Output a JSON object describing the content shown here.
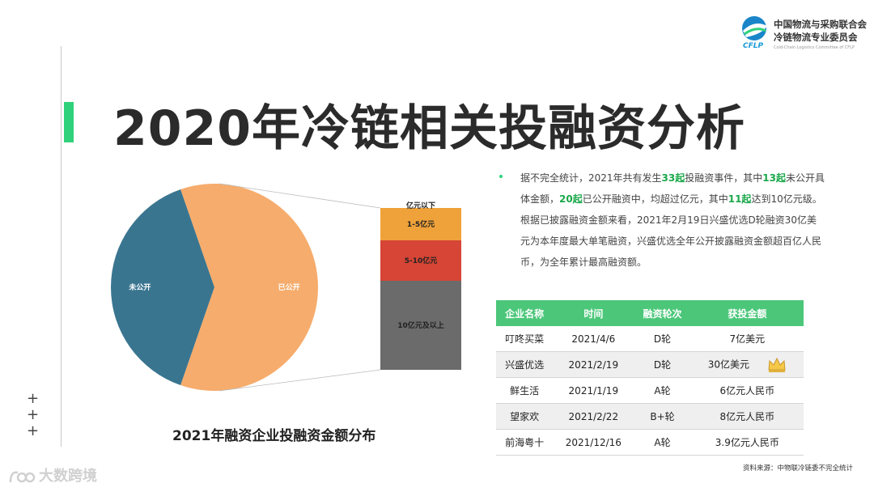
{
  "page": {
    "title": "2020年冷链相关投融资分析",
    "source": "资料来源：中物联冷链委不完全统计",
    "watermark": "大数跨境"
  },
  "logo": {
    "line1": "中国物流与采购联合会",
    "line2": "冷链物流专业委员会",
    "sub": "Cold-Chain Logistics Committee of CFLP",
    "abbr": "CFLP"
  },
  "summary": {
    "text": [
      "据不完全统计，2021年共有发生",
      "33起",
      "投融资事件，其中",
      "13起",
      "未公开具体金额，",
      "20起",
      "已公开融资中，均超过亿元，其中",
      "11起",
      "达到10亿元级。根据已披露融资金额来看，2021年2月19日兴盛优选D轮融资30亿美元为本年度最大单笔融资，兴盛优选全年公开披露融资金额超百亿人民币，为全年累计最高融资额。"
    ]
  },
  "chart_data": {
    "type": "pie",
    "title": "2021年融资企业投融资金额分布",
    "slices": [
      {
        "label": "未公开",
        "value": 13,
        "color": "#3a7590"
      },
      {
        "label": "已公开",
        "value": 20,
        "color": "#f6ac6c"
      }
    ],
    "breakdown": {
      "type": "stacked-bar",
      "of": "已公开",
      "segments": [
        {
          "label": "10亿元及以上",
          "value": 11,
          "color": "#6b6b6b"
        },
        {
          "label": "5-10亿元",
          "value": 5,
          "color": "#d64535"
        },
        {
          "label": "1-5亿元",
          "value": 4,
          "color": "#f0a23a"
        },
        {
          "label": "亿元以下",
          "value": 0,
          "color": "#f0a23a"
        }
      ]
    }
  },
  "table": {
    "headers": [
      "企业名称",
      "时间",
      "融资轮次",
      "获投金额"
    ],
    "rows": [
      [
        "叮咚买菜",
        "2021/4/6",
        "D轮",
        "7亿美元"
      ],
      [
        "兴盛优选",
        "2021/2/19",
        "D轮",
        "30亿美元"
      ],
      [
        "鲜生活",
        "2021/1/19",
        "A轮",
        "6亿元人民币"
      ],
      [
        "望家欢",
        "2021/2/22",
        "B+轮",
        "8亿元人民币"
      ],
      [
        "前海粤十",
        "2021/12/16",
        "A轮",
        "3.9亿元人民币"
      ]
    ],
    "crown_row": 1,
    "header_color": "#4cc77a"
  },
  "colors": {
    "accent": "#2fd27a",
    "highlight": "#1aa84a"
  },
  "icons": [
    "crown-icon",
    "plus-icon",
    "cflp-globe-icon",
    "watermark-logo-icon"
  ]
}
